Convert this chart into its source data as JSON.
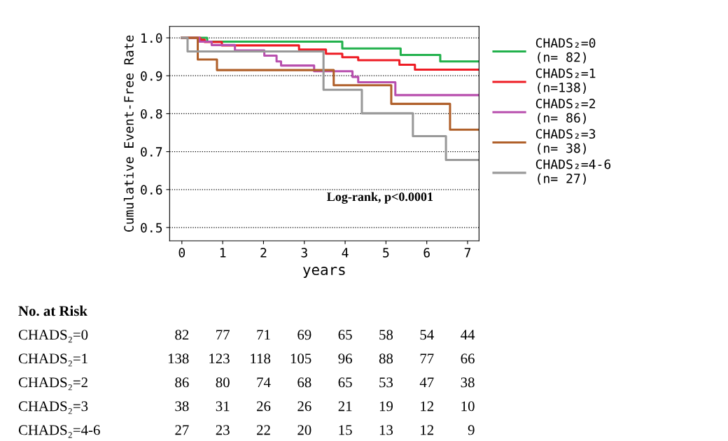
{
  "chart_data": {
    "type": "step",
    "xlabel": "years",
    "ylabel": "Cumulative Event-Free Rate",
    "xlim": [
      -0.3,
      7.28
    ],
    "xticks": [
      0,
      1,
      2,
      3,
      4,
      5,
      6,
      7
    ],
    "ylim": [
      0.465,
      1.03
    ],
    "yticks": [
      0.5,
      0.6,
      0.7,
      0.8,
      0.9,
      {
        "value": 1,
        "label": "1.0"
      }
    ],
    "grid": "y",
    "legend": "right",
    "line_style": "solid",
    "series": [
      {
        "name": "CHADS₂=0\n(n= 82)",
        "color": "#22b14c",
        "x": [
          0,
          0.62,
          3.93,
          5.36,
          6.33,
          7.26
        ],
        "values": [
          1.0,
          0.99,
          0.972,
          0.955,
          0.938,
          0.938
        ]
      },
      {
        "name": "CHADS₂=1\n(n=138)",
        "color": "#ee1c24",
        "x": [
          0,
          0.45,
          0.56,
          0.98,
          2.87,
          3.53,
          3.93,
          4.32,
          5.33,
          5.71,
          7.26
        ],
        "values": [
          1.0,
          0.995,
          0.989,
          0.98,
          0.969,
          0.958,
          0.949,
          0.941,
          0.929,
          0.916,
          0.916
        ]
      },
      {
        "name": "CHADS₂=2\n(n= 86)",
        "color": "#b84fae",
        "x": [
          0,
          0.43,
          0.73,
          1.3,
          2.02,
          2.32,
          2.43,
          3.24,
          4.18,
          4.32,
          5.23,
          7.26
        ],
        "values": [
          1.0,
          0.99,
          0.981,
          0.967,
          0.953,
          0.938,
          0.927,
          0.912,
          0.897,
          0.883,
          0.849,
          0.849
        ]
      },
      {
        "name": "CHADS₂=3\n(n= 38)",
        "color": "#b0602a",
        "x": [
          0,
          0.39,
          0.86,
          3.72,
          5.13,
          6.57,
          7.26
        ],
        "values": [
          1.0,
          0.943,
          0.915,
          0.875,
          0.826,
          0.758,
          0.758
        ]
      },
      {
        "name": "CHADS₂=4-6\n(n= 27)",
        "color": "#999999",
        "x": [
          0,
          0.14,
          3.47,
          4.41,
          5.66,
          6.47,
          7.26
        ],
        "values": [
          1.0,
          0.964,
          0.863,
          0.801,
          0.741,
          0.678,
          0.678
        ]
      }
    ],
    "annotations": [
      "Log-rank, p<0.0001",
      "No. at Risk",
      "CHADS₂=0",
      "82",
      "77",
      "71",
      "69",
      "65",
      "58",
      "54",
      "44",
      "CHADS₂=1",
      "138",
      "123",
      "118",
      "105",
      "96",
      "88",
      "77",
      "66",
      "CHADS₂=2",
      "86",
      "80",
      "74",
      "68",
      "65",
      "53",
      "47",
      "38",
      "CHADS₂=3",
      "38",
      "31",
      "26",
      "26",
      "21",
      "19",
      "12",
      "10",
      "CHADS₂=4-6",
      "27",
      "23",
      "22",
      "20",
      "15",
      "13",
      "12",
      "9"
    ]
  }
}
